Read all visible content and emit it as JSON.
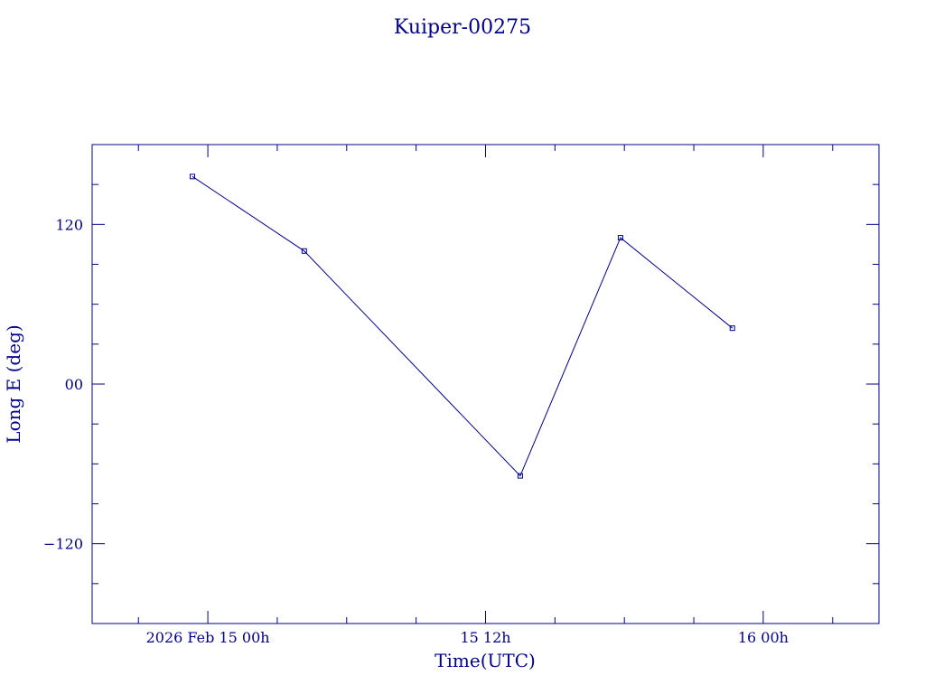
{
  "chart_data": {
    "type": "line",
    "title": "Kuiper-00275",
    "xlabel": "Time(UTC)",
    "ylabel": "Long E (deg)",
    "x_unit": "hours",
    "x_range": [
      "2026-02-14T19:00",
      "2026-02-16T05:00"
    ],
    "ylim": [
      -180,
      180
    ],
    "x_ticks": [
      {
        "t": "2026-02-15T00:00",
        "label": "2026 Feb 15  00h"
      },
      {
        "t": "2026-02-15T12:00",
        "label": "15  12h"
      },
      {
        "t": "2026-02-16T00:00",
        "label": "16  00h"
      }
    ],
    "y_ticks": [
      {
        "value": 120,
        "label": "120"
      },
      {
        "value": 0,
        "label": "00"
      },
      {
        "value": -120,
        "label": "−120"
      }
    ],
    "series": [
      {
        "x": [
          "2026-02-14T23:20",
          "2026-02-15T04:10",
          "2026-02-15T13:30",
          "2026-02-15T17:50",
          "2026-02-15T22:40"
        ],
        "y": [
          156,
          100,
          -69,
          110,
          42
        ]
      }
    ],
    "grid": false,
    "color": "#00008b"
  }
}
